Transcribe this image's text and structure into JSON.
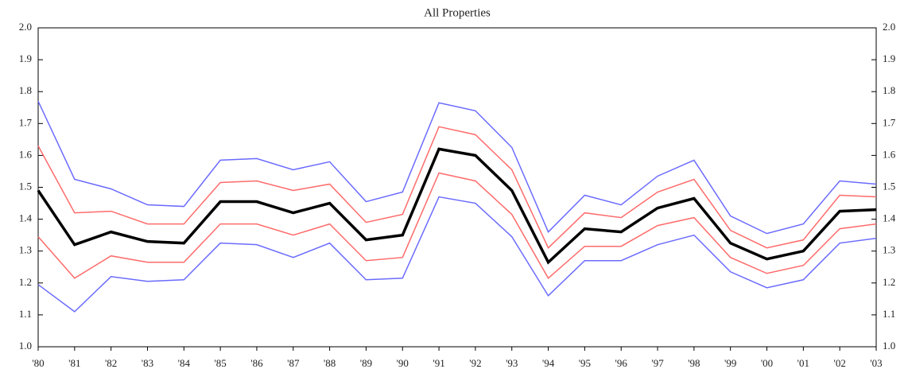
{
  "chart_data": {
    "type": "line",
    "title": "All Properties",
    "categories": [
      "'80",
      "'81",
      "'82",
      "'83",
      "'84",
      "'85",
      "'86",
      "'87",
      "'88",
      "'89",
      "'90",
      "'91",
      "'92",
      "'93",
      "'94",
      "'95",
      "'96",
      "'97",
      "'98",
      "'99",
      "'00",
      "'01",
      "'02",
      "'03"
    ],
    "series": [
      {
        "color": "#6b6bff",
        "width": 1.5,
        "values": [
          1.77,
          1.525,
          1.495,
          1.445,
          1.44,
          1.585,
          1.59,
          1.555,
          1.58,
          1.455,
          1.485,
          1.765,
          1.74,
          1.625,
          1.36,
          1.475,
          1.445,
          1.535,
          1.585,
          1.41,
          1.355,
          1.385,
          1.52,
          1.51
        ]
      },
      {
        "color": "#ff6b6b",
        "width": 1.5,
        "values": [
          1.63,
          1.42,
          1.425,
          1.385,
          1.385,
          1.515,
          1.52,
          1.49,
          1.51,
          1.39,
          1.415,
          1.69,
          1.665,
          1.555,
          1.31,
          1.42,
          1.405,
          1.485,
          1.525,
          1.365,
          1.31,
          1.335,
          1.475,
          1.47
        ]
      },
      {
        "color": "#000000",
        "width": 3.5,
        "values": [
          1.49,
          1.32,
          1.36,
          1.33,
          1.325,
          1.455,
          1.455,
          1.42,
          1.45,
          1.335,
          1.35,
          1.62,
          1.6,
          1.49,
          1.265,
          1.37,
          1.36,
          1.435,
          1.465,
          1.325,
          1.275,
          1.3,
          1.425,
          1.43
        ]
      },
      {
        "color": "#ff6b6b",
        "width": 1.5,
        "values": [
          1.345,
          1.215,
          1.285,
          1.265,
          1.265,
          1.385,
          1.385,
          1.35,
          1.385,
          1.27,
          1.28,
          1.545,
          1.52,
          1.415,
          1.215,
          1.315,
          1.315,
          1.38,
          1.405,
          1.28,
          1.23,
          1.255,
          1.37,
          1.385
        ]
      },
      {
        "color": "#6b6bff",
        "width": 1.5,
        "values": [
          1.195,
          1.11,
          1.22,
          1.205,
          1.21,
          1.325,
          1.32,
          1.28,
          1.325,
          1.21,
          1.215,
          1.47,
          1.45,
          1.345,
          1.16,
          1.27,
          1.27,
          1.32,
          1.35,
          1.235,
          1.185,
          1.21,
          1.325,
          1.34
        ]
      }
    ],
    "ylim": [
      1,
      2
    ],
    "yticks": [
      {
        "value": 1,
        "label": "1.0"
      },
      1.1,
      1.2,
      1.3,
      1.4,
      1.5,
      1.6,
      1.7,
      1.8,
      1.9,
      {
        "value": 2,
        "label": "2.0"
      }
    ],
    "y2lim": [
      1,
      2
    ],
    "y2ticks": [
      {
        "value": 1,
        "label": "1.0"
      },
      1.1,
      1.2,
      1.3,
      1.4,
      1.5,
      1.6,
      1.7,
      1.8,
      1.9,
      {
        "value": 2,
        "label": "2.0"
      }
    ],
    "grid": false
  }
}
